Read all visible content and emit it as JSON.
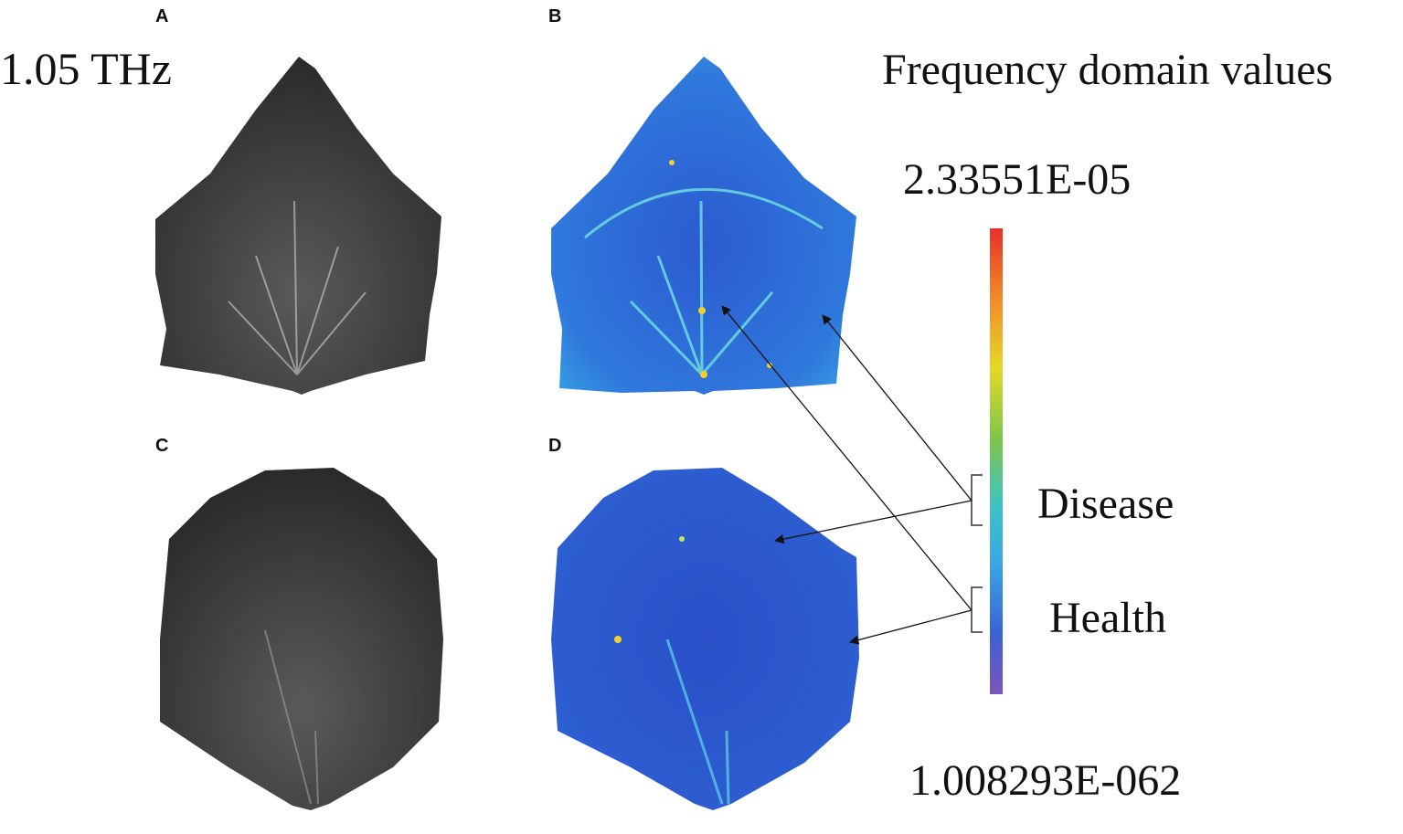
{
  "panels": {
    "a": "A",
    "b": "B",
    "c": "C",
    "d": "D"
  },
  "frequency": "1.05 THz",
  "colorbar": {
    "title": "Frequency domain values",
    "max_label": "2.33551E-05",
    "min_label": "1.008293E-062"
  },
  "legend": {
    "disease": "Disease",
    "health": "Health"
  }
}
